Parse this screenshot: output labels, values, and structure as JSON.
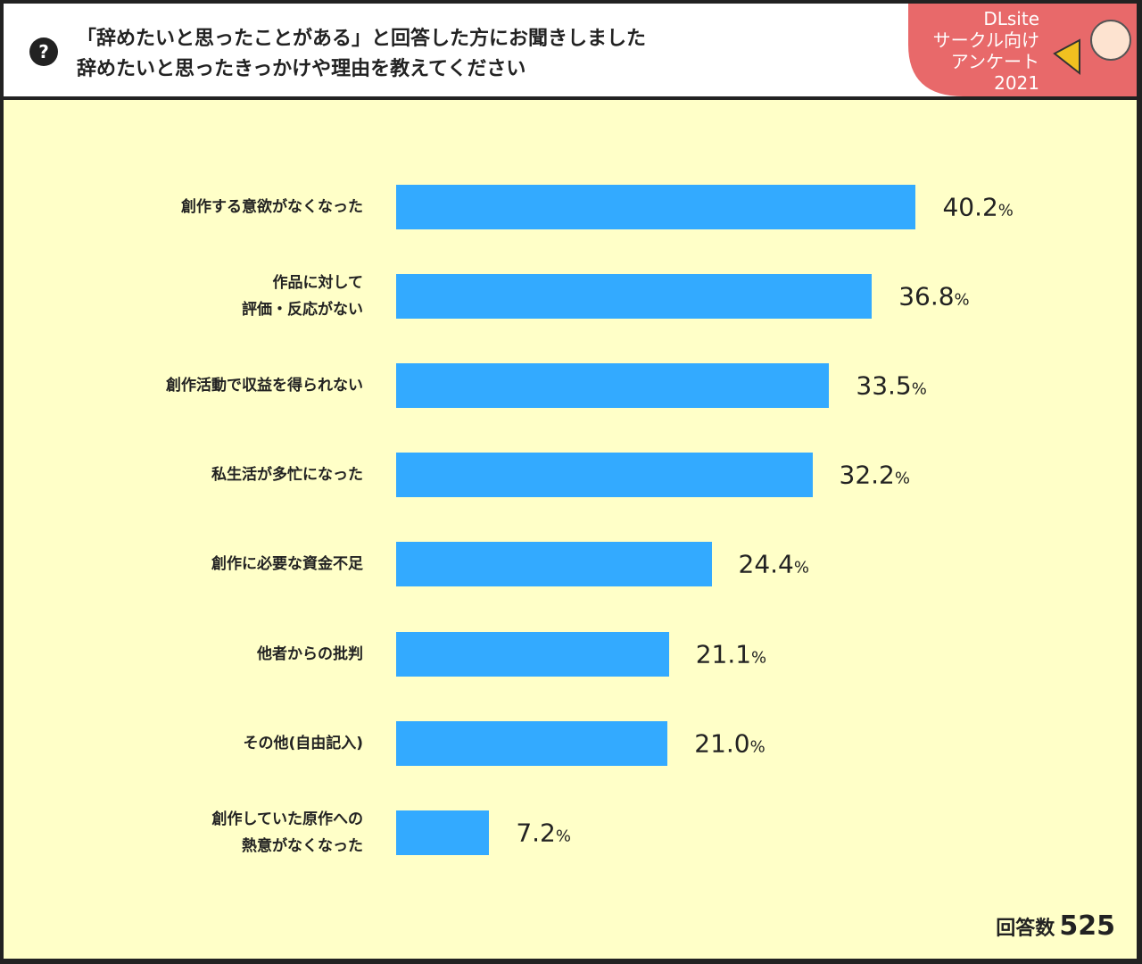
{
  "chart_data": {
    "type": "bar",
    "title_lines": [
      "「辞めたいと思ったことがある」と回答した方にお聞きしました",
      "辞めたいと思ったきっかけや理由を教えてください"
    ],
    "icon": "?",
    "badge_lines": [
      "DLsite",
      "サークル向け",
      "アンケート",
      "2021"
    ],
    "categories": [
      "創作する意欲がなくなった",
      "作品に対して\n評価・反応がない",
      "創作活動で収益を得られない",
      "私生活が多忙になった",
      "創作に必要な資金不足",
      "他者からの批判",
      "その他(自由記入)",
      "創作していた原作への\n熱意がなくなった"
    ],
    "values": [
      40.2,
      36.8,
      33.5,
      32.2,
      24.4,
      21.1,
      21.0,
      7.2
    ],
    "value_labels": [
      "40.2",
      "36.8",
      "33.5",
      "32.2",
      "24.4",
      "21.1",
      "21.0",
      "7.2"
    ],
    "unit": "%",
    "color": "#33aaff",
    "xlim": [
      0,
      45
    ],
    "respondents_label": "回答数",
    "respondents": 525
  }
}
